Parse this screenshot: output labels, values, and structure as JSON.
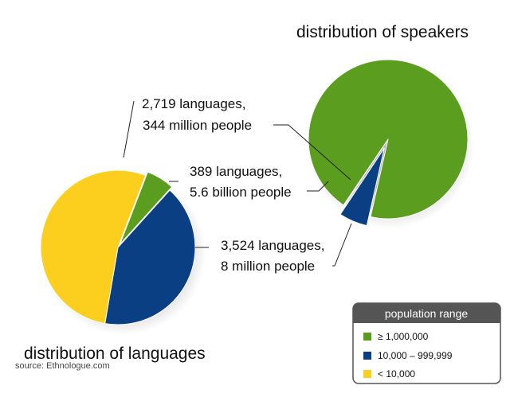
{
  "chart_data": [
    {
      "type": "pie",
      "title": "distribution of languages",
      "categories": [
        "≥ 1,000,000",
        "10,000 – 999,999",
        "< 10,000"
      ],
      "values": [
        389,
        2719,
        3524
      ],
      "unit": "languages"
    },
    {
      "type": "pie",
      "title": "distribution of speakers",
      "categories": [
        "≥ 1,000,000",
        "10,000 – 999,999",
        "< 10,000"
      ],
      "values": [
        5600,
        344,
        8
      ],
      "unit": "million people"
    }
  ],
  "annotations": [
    {
      "category": "10,000 – 999,999",
      "line1": "2,719 languages,",
      "line2": "344 million people"
    },
    {
      "category": "≥ 1,000,000",
      "line1": "389 languages,",
      "line2": "5.6 billion people"
    },
    {
      "category": "< 10,000",
      "line1": "3,524 languages,",
      "line2": "8 million people"
    }
  ],
  "legend": {
    "title": "population range",
    "items": [
      "≥ 1,000,000",
      "10,000 – 999,999",
      "< 10,000"
    ]
  },
  "colors": {
    "≥ 1,000,000": "#5b9e1f",
    "10,000 – 999,999": "#0b3f83",
    "< 10,000": "#fcce1e",
    "legend_header": "#555555",
    "leader_line": "#222222"
  },
  "source": "source: Ethnologue.com"
}
